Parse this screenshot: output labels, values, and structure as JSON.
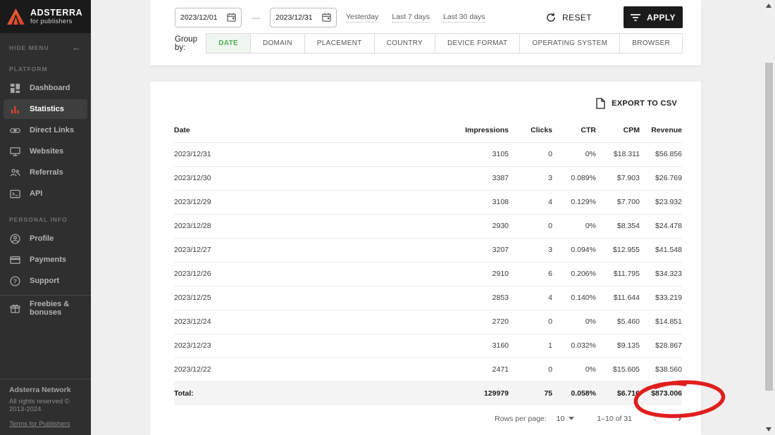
{
  "colors": {
    "sidebar_bg": "#2f2f2f",
    "logo_bg": "#1a1a1a",
    "brand_orange": "#e8542f",
    "accent_red_icon": "#d9442e",
    "active_tab_green": "#4caf50",
    "apply_button_black": "#1b1b1b",
    "annotation_red": "#e01e1e"
  },
  "icons": [
    "adsterra-logo-icon",
    "back-arrow-icon",
    "dashboard-icon",
    "statistics-icon",
    "direct-links-icon",
    "websites-icon",
    "referrals-icon",
    "api-icon",
    "profile-icon",
    "payments-icon",
    "support-icon",
    "freebies-icon",
    "calendar-icon",
    "refresh-icon",
    "filter-icon",
    "export-file-icon",
    "dropdown-caret-icon",
    "chevron-left-icon",
    "chevron-right-icon",
    "scrollbar-up-icon",
    "scrollbar-down-icon"
  ],
  "sidebar": {
    "logo": {
      "title": "ADSTERRA",
      "subtitle": "for publishers"
    },
    "hide_menu": "HIDE MENU",
    "sections": [
      {
        "label": "PLATFORM",
        "items": [
          {
            "label": "Dashboard"
          },
          {
            "label": "Statistics"
          },
          {
            "label": "Direct Links"
          },
          {
            "label": "Websites"
          },
          {
            "label": "Referrals"
          },
          {
            "label": "API"
          }
        ]
      },
      {
        "label": "PERSONAL INFO",
        "items": [
          {
            "label": "Profile"
          },
          {
            "label": "Payments"
          },
          {
            "label": "Support"
          }
        ]
      }
    ],
    "active_item": "Statistics",
    "freebies_label": "Freebies & bonuses",
    "footer": {
      "line1": "Adsterra Network",
      "line2": "All rights reserved © 2013-2024",
      "link": "Terms for Publishers"
    }
  },
  "filters": {
    "date_from": "2023/12/01",
    "date_to": "2023/12/31",
    "quick_ranges": [
      "Yesterday",
      "Last 7 days",
      "Last 30 days"
    ],
    "reset_label": "RESET",
    "apply_label": "APPLY",
    "group_by_label": "Group by:",
    "group_tabs": [
      "DATE",
      "DOMAIN",
      "PLACEMENT",
      "COUNTRY",
      "DEVICE FORMAT",
      "OPERATING SYSTEM",
      "BROWSER"
    ],
    "active_tab": "DATE"
  },
  "table": {
    "export_label": "EXPORT TO CSV",
    "columns": [
      "Date",
      "Impressions",
      "Clicks",
      "CTR",
      "CPM",
      "Revenue"
    ],
    "rows": [
      {
        "date": "2023/12/31",
        "impressions": "3105",
        "clicks": "0",
        "ctr": "0%",
        "cpm": "$18.311",
        "revenue": "$56.856"
      },
      {
        "date": "2023/12/30",
        "impressions": "3387",
        "clicks": "3",
        "ctr": "0.089%",
        "cpm": "$7.903",
        "revenue": "$26.769"
      },
      {
        "date": "2023/12/29",
        "impressions": "3108",
        "clicks": "4",
        "ctr": "0.129%",
        "cpm": "$7.700",
        "revenue": "$23.932"
      },
      {
        "date": "2023/12/28",
        "impressions": "2930",
        "clicks": "0",
        "ctr": "0%",
        "cpm": "$8.354",
        "revenue": "$24.478"
      },
      {
        "date": "2023/12/27",
        "impressions": "3207",
        "clicks": "3",
        "ctr": "0.094%",
        "cpm": "$12.955",
        "revenue": "$41.548"
      },
      {
        "date": "2023/12/26",
        "impressions": "2910",
        "clicks": "6",
        "ctr": "0.206%",
        "cpm": "$11.795",
        "revenue": "$34.323"
      },
      {
        "date": "2023/12/25",
        "impressions": "2853",
        "clicks": "4",
        "ctr": "0.140%",
        "cpm": "$11.644",
        "revenue": "$33.219"
      },
      {
        "date": "2023/12/24",
        "impressions": "2720",
        "clicks": "0",
        "ctr": "0%",
        "cpm": "$5.460",
        "revenue": "$14.851"
      },
      {
        "date": "2023/12/23",
        "impressions": "3160",
        "clicks": "1",
        "ctr": "0.032%",
        "cpm": "$9.135",
        "revenue": "$28.867"
      },
      {
        "date": "2023/12/22",
        "impressions": "2471",
        "clicks": "0",
        "ctr": "0%",
        "cpm": "$15.605",
        "revenue": "$38.560"
      }
    ],
    "total": {
      "label": "Total:",
      "impressions": "129979",
      "clicks": "75",
      "ctr": "0.058%",
      "cpm": "$6.716",
      "revenue": "$873.006"
    }
  },
  "pagination": {
    "rows_per_page_label": "Rows per page:",
    "rows_per_page": "10",
    "range": "1–10 of 31"
  },
  "annotation": {
    "type": "hand-drawn-circle",
    "target": "total-revenue",
    "color": "#e01e1e"
  }
}
